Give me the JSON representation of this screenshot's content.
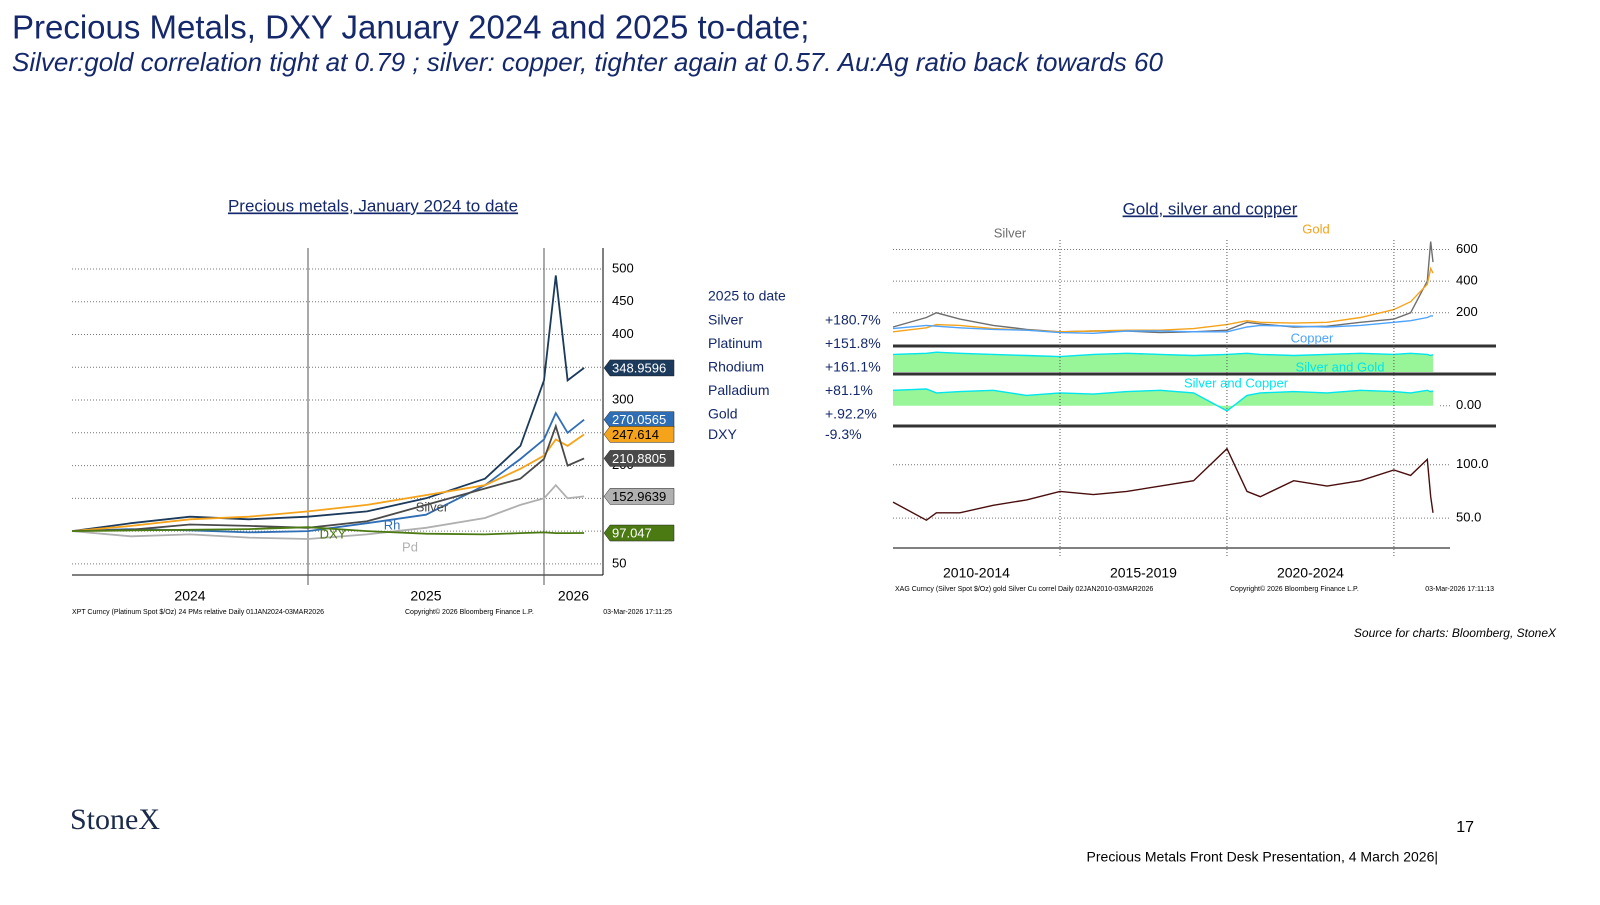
{
  "header": {
    "title": "Precious Metals, DXY January 2024 and 2025 to-date;",
    "subtitle": "Silver:gold correlation tight at 0.79 ; silver: copper, tighter again at 0.57.  Au:Ag ratio back towards 60"
  },
  "chart_data": [
    {
      "type": "line",
      "title": "Precious metals, January 2024 to date",
      "x": [
        2024,
        2024.25,
        2024.5,
        2024.75,
        2025,
        2025.25,
        2025.5,
        2025.75,
        2025.9,
        2026,
        2026.05,
        2026.1,
        2026.17
      ],
      "xlim": [
        2024,
        2026.25
      ],
      "xticks": [
        2025,
        2026
      ],
      "x_labels": [
        "2024",
        "2025",
        "2026"
      ],
      "ylim": [
        33,
        532
      ],
      "yticks": [
        50,
        100,
        150,
        200,
        250,
        300,
        350,
        400,
        450,
        500
      ],
      "grid": true,
      "series": [
        {
          "color": "#1b3a5c",
          "values": [
            100,
            112,
            122,
            118,
            122,
            130,
            150,
            180,
            230,
            330,
            490,
            330,
            348.9596
          ]
        },
        {
          "name": "Rh",
          "color": "#2f6db5",
          "values": [
            100,
            103,
            101,
            98,
            100,
            112,
            125,
            170,
            210,
            240,
            280,
            250,
            270.0565
          ]
        },
        {
          "color": "#f5a31a",
          "values": [
            100,
            108,
            118,
            122,
            130,
            140,
            155,
            170,
            195,
            215,
            240,
            230,
            247.614
          ]
        },
        {
          "name": "Silver",
          "color": "#4a4a4a",
          "values": [
            100,
            102,
            110,
            108,
            105,
            115,
            140,
            165,
            180,
            210,
            260,
            200,
            210.8805
          ]
        },
        {
          "name": "Pd",
          "color": "#b0b0b0",
          "values": [
            100,
            92,
            95,
            90,
            88,
            95,
            105,
            120,
            140,
            150,
            170,
            150,
            152.9639
          ]
        },
        {
          "name": "DXY",
          "color": "#4c7a12",
          "values": [
            100,
            101,
            102,
            103,
            106,
            100,
            96,
            95,
            97,
            98,
            97,
            97,
            97.047
          ]
        }
      ],
      "footnote": [
        "XPT Curncy (Platinum Spot $/Oz) 24 PMs relative Daily 01JAN2024-03MAR2026",
        "Copyright© 2026 Bloomberg Finance L.P.",
        "03-Mar-2026 17:11:25"
      ]
    },
    {
      "type": "line",
      "title": "Gold, silver and copper",
      "x": [
        2010,
        2011,
        2011.3,
        2012,
        2013,
        2014,
        2015,
        2016,
        2017,
        2018,
        2019,
        2020,
        2020.6,
        2021,
        2022,
        2023,
        2024,
        2025,
        2025.5,
        2026,
        2026.1,
        2026.17
      ],
      "xlim": [
        2010,
        2026.17
      ],
      "ylim": [
        -10,
        660
      ],
      "yticks": [
        200,
        400,
        600
      ],
      "grid": true,
      "series": [
        {
          "name": "Silver",
          "color": "#6e6e6e",
          "values": [
            110,
            170,
            200,
            160,
            120,
            95,
            80,
            85,
            85,
            75,
            80,
            90,
            140,
            130,
            110,
            115,
            140,
            160,
            200,
            400,
            650,
            520
          ]
        },
        {
          "name": "Gold",
          "color": "#f5a31a",
          "values": [
            80,
            105,
            125,
            120,
            100,
            90,
            80,
            85,
            90,
            90,
            100,
            125,
            150,
            140,
            135,
            140,
            170,
            220,
            270,
            380,
            480,
            450
          ]
        },
        {
          "name": "Copper",
          "color": "#4da3ff",
          "values": [
            100,
            120,
            115,
            105,
            95,
            90,
            75,
            70,
            85,
            85,
            80,
            80,
            110,
            120,
            115,
            110,
            120,
            140,
            150,
            170,
            180,
            180
          ]
        }
      ]
    },
    {
      "type": "area",
      "x": [
        2010,
        2011,
        2011.3,
        2012,
        2013,
        2014,
        2015,
        2016,
        2017,
        2018,
        2019,
        2020,
        2020.6,
        2021,
        2022,
        2023,
        2024,
        2025,
        2025.5,
        2026,
        2026.1,
        2026.17
      ],
      "xlim": [
        2010,
        2026.17
      ],
      "ylim": [
        0,
        1
      ],
      "series": [
        {
          "name": "Silver and Gold",
          "color": "#00e5ee",
          "fill_color": "#98f598",
          "values": [
            0.8,
            0.85,
            0.9,
            0.85,
            0.8,
            0.75,
            0.7,
            0.8,
            0.85,
            0.8,
            0.75,
            0.8,
            0.85,
            0.8,
            0.75,
            0.8,
            0.85,
            0.8,
            0.85,
            0.8,
            0.75,
            0.79
          ]
        }
      ]
    },
    {
      "type": "area",
      "x": [
        2010,
        2011,
        2011.3,
        2012,
        2013,
        2014,
        2015,
        2016,
        2017,
        2018,
        2019,
        2020,
        2020.6,
        2021,
        2022,
        2023,
        2024,
        2025,
        2025.5,
        2026,
        2026.1,
        2026.17
      ],
      "xlim": [
        2010,
        2026.17
      ],
      "ylim": [
        -0.75,
        1
      ],
      "yticks": [
        {
          "value": 0,
          "label": "0.00"
        }
      ],
      "series": [
        {
          "name": "Silver and Copper",
          "color": "#00e5ee",
          "fill_color": "#98f598",
          "values": [
            0.6,
            0.65,
            0.5,
            0.55,
            0.6,
            0.4,
            0.5,
            0.45,
            0.55,
            0.6,
            0.5,
            -0.2,
            0.4,
            0.5,
            0.55,
            0.5,
            0.6,
            0.55,
            0.5,
            0.6,
            0.55,
            0.57
          ]
        }
      ]
    },
    {
      "type": "line",
      "x": [
        2010,
        2011,
        2011.3,
        2012,
        2013,
        2014,
        2015,
        2016,
        2017,
        2018,
        2019,
        2020,
        2020.6,
        2021,
        2022,
        2023,
        2024,
        2025,
        2025.5,
        2026,
        2026.1,
        2026.17
      ],
      "xlim": [
        2010,
        2026.17
      ],
      "xticks": [
        2015,
        2020,
        2025
      ],
      "x_labels": [
        "2010-2014",
        "2015-2019",
        "2020-2024"
      ],
      "ylim": [
        22,
        125
      ],
      "yticks": [
        {
          "value": 50,
          "label": "50.0"
        },
        {
          "value": 100,
          "label": "100.0"
        }
      ],
      "grid": true,
      "series": [
        {
          "color": "#4a0e0e",
          "values": [
            65,
            48,
            55,
            55,
            62,
            67,
            75,
            72,
            75,
            80,
            85,
            115,
            75,
            70,
            85,
            80,
            85,
            95,
            90,
            105,
            70,
            55
          ]
        }
      ],
      "footnote": [
        "XAG Curncy (Silver Spot $/Oz) gold Silver Cu correl Daily 02JAN2010-03MAR2026",
        "Copyright© 2026 Bloomberg Finance L.P.",
        "03-Mar-2026 17:11:13"
      ]
    }
  ],
  "performance": {
    "heading": "2025 to date",
    "rows": [
      [
        "Silver",
        "+180.7%"
      ],
      [
        "Platinum",
        "+151.8%"
      ],
      [
        "Rhodium",
        "+161.1%"
      ],
      [
        "Palladium",
        "+81.1%"
      ],
      [
        "Gold",
        "+.92.2%"
      ],
      [
        "DXY",
        "-9.3%"
      ]
    ]
  },
  "source": "Source for charts: Bloomberg, StoneX",
  "footer": {
    "logo": "StoneX",
    "page": 17,
    "presentation": "Precious Metals Front Desk Presentation, 4 March 2026|"
  }
}
